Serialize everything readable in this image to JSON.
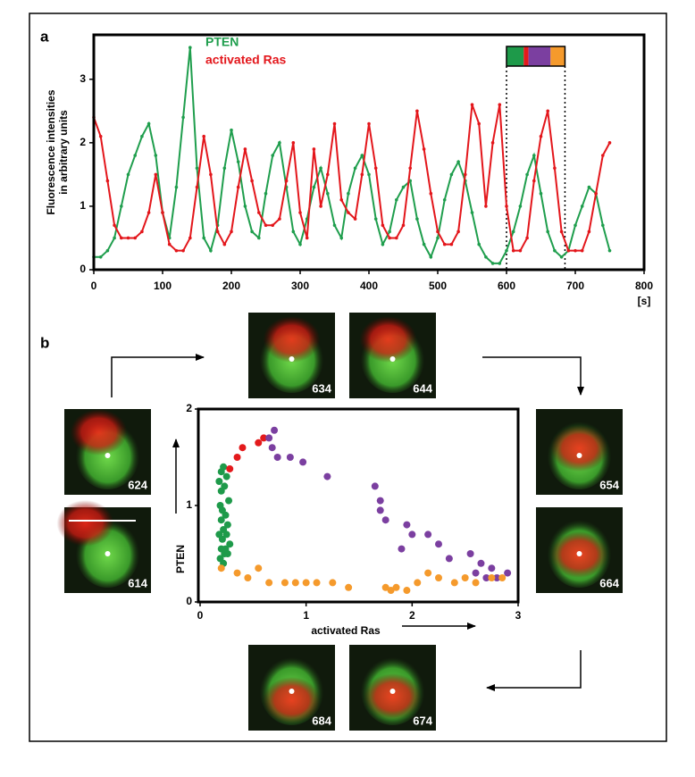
{
  "chart_data": [
    {
      "type": "line",
      "panel_label": "a",
      "y_label": [
        "Fluorescence intensities",
        "in arbitrary units"
      ],
      "x_label": "[s]",
      "x": [
        0,
        10,
        20,
        30,
        40,
        50,
        60,
        70,
        80,
        90,
        100,
        110,
        120,
        130,
        140,
        150,
        160,
        170,
        180,
        190,
        200,
        210,
        220,
        230,
        240,
        250,
        260,
        270,
        280,
        290,
        300,
        310,
        320,
        330,
        340,
        350,
        360,
        370,
        380,
        390,
        400,
        410,
        420,
        430,
        440,
        450,
        460,
        470,
        480,
        490,
        500,
        510,
        520,
        530,
        540,
        550,
        560,
        570,
        580,
        590,
        600,
        610,
        620,
        630,
        640,
        650,
        660,
        670,
        680,
        690,
        700,
        710,
        720,
        730,
        740,
        750
      ],
      "series": [
        {
          "name": "PTEN",
          "color": "#1f9e4d",
          "values": [
            0.2,
            0.2,
            0.3,
            0.5,
            1.0,
            1.5,
            1.8,
            2.1,
            2.3,
            1.8,
            0.9,
            0.5,
            1.3,
            2.4,
            3.5,
            1.6,
            0.5,
            0.3,
            0.7,
            1.6,
            2.2,
            1.7,
            1.0,
            0.6,
            0.5,
            1.2,
            1.8,
            2.0,
            1.3,
            0.6,
            0.4,
            0.8,
            1.3,
            1.6,
            1.2,
            0.7,
            0.5,
            1.2,
            1.6,
            1.8,
            1.5,
            0.8,
            0.4,
            0.6,
            1.1,
            1.3,
            1.4,
            0.8,
            0.4,
            0.2,
            0.5,
            1.1,
            1.5,
            1.7,
            1.4,
            0.9,
            0.4,
            0.2,
            0.1,
            0.1,
            0.3,
            0.6,
            1.0,
            1.5,
            1.8,
            1.2,
            0.6,
            0.3,
            0.2,
            0.3,
            0.7,
            1.0,
            1.3,
            1.2,
            0.7,
            0.3
          ]
        },
        {
          "name": "activated Ras",
          "color": "#e3161b",
          "values": [
            2.4,
            2.1,
            1.4,
            0.7,
            0.5,
            0.5,
            0.5,
            0.6,
            0.9,
            1.5,
            0.9,
            0.4,
            0.3,
            0.3,
            0.5,
            1.3,
            2.1,
            1.5,
            0.6,
            0.4,
            0.6,
            1.3,
            1.9,
            1.4,
            0.9,
            0.7,
            0.7,
            0.8,
            1.4,
            2.0,
            0.9,
            0.5,
            1.9,
            1.0,
            1.5,
            2.3,
            1.1,
            0.9,
            0.8,
            1.5,
            2.3,
            1.6,
            0.7,
            0.5,
            0.5,
            0.7,
            1.6,
            2.5,
            1.9,
            1.2,
            0.6,
            0.4,
            0.4,
            0.6,
            1.5,
            2.6,
            2.3,
            1.0,
            2.0,
            2.6,
            1.0,
            0.3,
            0.3,
            0.5,
            1.4,
            2.1,
            2.5,
            1.6,
            0.6,
            0.3,
            0.3,
            0.3,
            0.6,
            1.2,
            1.8,
            2.0
          ]
        }
      ],
      "xlim": [
        0,
        800
      ],
      "xticks": [
        0,
        100,
        200,
        300,
        400,
        500,
        600,
        700,
        800
      ],
      "ylim": [
        0,
        3.7
      ],
      "yticks": [
        0,
        1,
        2,
        3
      ],
      "phases": [
        {
          "color": "#1e9a4a",
          "start": 600,
          "end": 625
        },
        {
          "color": "#e31a1c",
          "start": 625,
          "end": 632
        },
        {
          "color": "#7b3fa0",
          "start": 632,
          "end": 664
        },
        {
          "color": "#f59a2c",
          "start": 664,
          "end": 685
        }
      ]
    },
    {
      "type": "scatter",
      "panel_label": "b",
      "x_label": "activated Ras",
      "y_label": "PTEN",
      "series": [
        {
          "color": "#1e9a4a",
          "x": [
            0.2,
            0.22,
            0.18,
            0.25,
            0.2,
            0.23,
            0.27,
            0.19,
            0.21,
            0.24,
            0.2,
            0.26,
            0.22,
            0.18,
            0.25,
            0.21,
            0.28,
            0.2,
            0.23,
            0.19,
            0.26,
            0.22,
            0.24
          ],
          "values": [
            1.35,
            1.4,
            1.25,
            1.3,
            1.15,
            1.2,
            1.05,
            1.0,
            0.95,
            0.9,
            0.85,
            0.8,
            0.75,
            0.7,
            0.7,
            0.65,
            0.6,
            0.55,
            0.5,
            0.45,
            0.5,
            0.4,
            0.55
          ]
        },
        {
          "color": "#e31a1c",
          "x": [
            0.28,
            0.35,
            0.4,
            0.55,
            0.6
          ],
          "values": [
            1.38,
            1.5,
            1.6,
            1.65,
            1.7
          ]
        },
        {
          "color": "#7b3fa0",
          "x": [
            0.7,
            0.65,
            0.68,
            0.73,
            0.85,
            0.97,
            1.2,
            1.65,
            1.7,
            1.7,
            1.75,
            1.95,
            1.9,
            2.0,
            2.15,
            2.25,
            2.35,
            2.55,
            2.65,
            2.75,
            2.8,
            2.9,
            2.6,
            2.7
          ],
          "values": [
            1.78,
            1.7,
            1.6,
            1.5,
            1.5,
            1.45,
            1.3,
            1.2,
            1.05,
            0.95,
            0.85,
            0.8,
            0.55,
            0.7,
            0.7,
            0.6,
            0.45,
            0.5,
            0.4,
            0.35,
            0.25,
            0.3,
            0.3,
            0.25
          ]
        },
        {
          "color": "#f59a2c",
          "x": [
            0.2,
            0.35,
            0.45,
            0.55,
            0.65,
            0.8,
            0.9,
            1.0,
            1.1,
            1.25,
            1.4,
            1.75,
            1.8,
            1.85,
            1.95,
            2.05,
            2.15,
            2.25,
            2.4,
            2.5,
            2.6,
            2.75,
            2.85
          ],
          "values": [
            0.35,
            0.3,
            0.25,
            0.35,
            0.2,
            0.2,
            0.2,
            0.2,
            0.2,
            0.2,
            0.15,
            0.15,
            0.12,
            0.15,
            0.12,
            0.2,
            0.3,
            0.25,
            0.2,
            0.25,
            0.2,
            0.25,
            0.25
          ]
        }
      ],
      "xlim": [
        0,
        3
      ],
      "xticks": [
        0,
        1,
        2,
        3
      ],
      "ylim": [
        0,
        2
      ],
      "yticks": [
        0,
        1,
        2
      ]
    }
  ],
  "micrographs": [
    "634",
    "644",
    "624",
    "614",
    "654",
    "664",
    "684",
    "674"
  ]
}
